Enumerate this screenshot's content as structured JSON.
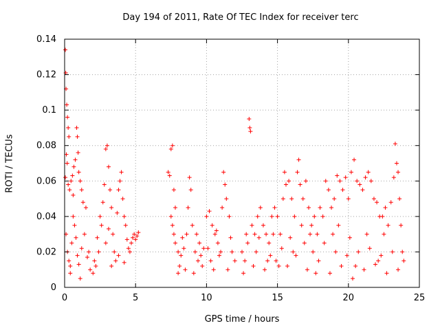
{
  "chart_data": {
    "type": "scatter",
    "title": "Day 194 of 2011, Rate Of TEC Index for receiver terc",
    "xlabel": "GPS time / hours",
    "ylabel": "ROTI / TECUs",
    "xlim": [
      0,
      25
    ],
    "ylim": [
      0,
      0.14
    ],
    "xticks": [
      "0",
      "5",
      "10",
      "15",
      "20",
      "25"
    ],
    "yticks": [
      "0",
      "0.02",
      "0.04",
      "0.06",
      "0.08",
      "0.1",
      "0.12",
      "0.14"
    ],
    "grid": true,
    "marker": "+",
    "color": "#ff0000",
    "series": [
      {
        "points": [
          [
            0.05,
            0.134
          ],
          [
            0.08,
            0.121
          ],
          [
            0.1,
            0.112
          ],
          [
            0.15,
            0.103
          ],
          [
            0.2,
            0.096
          ],
          [
            0.25,
            0.09
          ],
          [
            0.3,
            0.085
          ],
          [
            0.12,
            0.075
          ],
          [
            0.18,
            0.07
          ],
          [
            0.05,
            0.062
          ],
          [
            0.25,
            0.058
          ],
          [
            0.35,
            0.055
          ],
          [
            0.45,
            0.06
          ],
          [
            0.55,
            0.063
          ],
          [
            0.65,
            0.068
          ],
          [
            0.75,
            0.072
          ],
          [
            0.85,
            0.09
          ],
          [
            0.9,
            0.085
          ],
          [
            0.95,
            0.076
          ],
          [
            1.0,
            0.065
          ],
          [
            1.1,
            0.06
          ],
          [
            1.2,
            0.055
          ],
          [
            1.3,
            0.048
          ],
          [
            0.1,
            0.03
          ],
          [
            0.2,
            0.02
          ],
          [
            0.3,
            0.015
          ],
          [
            0.4,
            0.012
          ],
          [
            0.5,
            0.025
          ],
          [
            0.6,
            0.04
          ],
          [
            0.7,
            0.035
          ],
          [
            0.8,
            0.028
          ],
          [
            0.9,
            0.018
          ],
          [
            1.0,
            0.013
          ],
          [
            1.2,
            0.022
          ],
          [
            1.4,
            0.03
          ],
          [
            1.6,
            0.017
          ],
          [
            1.8,
            0.01
          ],
          [
            2.0,
            0.008
          ],
          [
            2.2,
            0.012
          ],
          [
            2.4,
            0.02
          ],
          [
            2.6,
            0.035
          ],
          [
            2.7,
            0.048
          ],
          [
            2.8,
            0.058
          ],
          [
            2.9,
            0.078
          ],
          [
            3.0,
            0.08
          ],
          [
            3.1,
            0.068
          ],
          [
            3.2,
            0.055
          ],
          [
            3.3,
            0.045
          ],
          [
            3.4,
            0.03
          ],
          [
            3.5,
            0.02
          ],
          [
            3.6,
            0.015
          ],
          [
            3.7,
            0.042
          ],
          [
            3.8,
            0.055
          ],
          [
            3.9,
            0.06
          ],
          [
            4.0,
            0.065
          ],
          [
            4.1,
            0.05
          ],
          [
            4.2,
            0.04
          ],
          [
            4.3,
            0.035
          ],
          [
            4.4,
            0.027
          ],
          [
            4.5,
            0.022
          ],
          [
            4.6,
            0.02
          ],
          [
            4.7,
            0.025
          ],
          [
            4.8,
            0.028
          ],
          [
            4.9,
            0.03
          ],
          [
            5.0,
            0.027
          ],
          [
            5.1,
            0.029
          ],
          [
            5.2,
            0.031
          ],
          [
            1.5,
            0.045
          ],
          [
            2.1,
            0.015
          ],
          [
            2.5,
            0.04
          ],
          [
            2.9,
            0.025
          ],
          [
            3.3,
            0.012
          ],
          [
            3.8,
            0.018
          ],
          [
            4.2,
            0.014
          ],
          [
            0.4,
            0.008
          ],
          [
            1.1,
            0.005
          ],
          [
            1.7,
            0.02
          ],
          [
            2.3,
            0.028
          ],
          [
            3.1,
            0.033
          ],
          [
            0.6,
            0.052
          ],
          [
            7.3,
            0.065
          ],
          [
            7.4,
            0.063
          ],
          [
            7.5,
            0.078
          ],
          [
            7.6,
            0.08
          ],
          [
            7.7,
            0.055
          ],
          [
            7.8,
            0.045
          ],
          [
            7.5,
            0.04
          ],
          [
            7.6,
            0.035
          ],
          [
            7.7,
            0.03
          ],
          [
            7.8,
            0.025
          ],
          [
            8.0,
            0.02
          ],
          [
            8.2,
            0.018
          ],
          [
            8.4,
            0.022
          ],
          [
            8.6,
            0.03
          ],
          [
            8.7,
            0.045
          ],
          [
            8.8,
            0.062
          ],
          [
            8.9,
            0.055
          ],
          [
            9.0,
            0.035
          ],
          [
            9.2,
            0.02
          ],
          [
            9.4,
            0.015
          ],
          [
            9.6,
            0.018
          ],
          [
            9.8,
            0.022
          ],
          [
            10.0,
            0.04
          ],
          [
            10.2,
            0.043
          ],
          [
            10.4,
            0.035
          ],
          [
            10.6,
            0.03
          ],
          [
            10.8,
            0.025
          ],
          [
            11.0,
            0.02
          ],
          [
            11.2,
            0.065
          ],
          [
            11.3,
            0.058
          ],
          [
            11.4,
            0.05
          ],
          [
            11.6,
            0.04
          ],
          [
            11.8,
            0.02
          ],
          [
            12.0,
            0.015
          ],
          [
            8.1,
            0.012
          ],
          [
            8.5,
            0.01
          ],
          [
            9.1,
            0.008
          ],
          [
            9.7,
            0.012
          ],
          [
            10.3,
            0.015
          ],
          [
            10.9,
            0.018
          ],
          [
            11.5,
            0.01
          ],
          [
            8.3,
            0.028
          ],
          [
            9.3,
            0.03
          ],
          [
            10.1,
            0.022
          ],
          [
            10.7,
            0.032
          ],
          [
            11.1,
            0.045
          ],
          [
            11.7,
            0.028
          ],
          [
            8.0,
            0.008
          ],
          [
            9.5,
            0.025
          ],
          [
            10.5,
            0.01
          ],
          [
            12.5,
            0.02
          ],
          [
            12.7,
            0.015
          ],
          [
            12.9,
            0.025
          ],
          [
            13.0,
            0.095
          ],
          [
            13.05,
            0.09
          ],
          [
            13.1,
            0.088
          ],
          [
            13.2,
            0.035
          ],
          [
            13.4,
            0.03
          ],
          [
            13.6,
            0.04
          ],
          [
            13.8,
            0.045
          ],
          [
            14.0,
            0.035
          ],
          [
            14.2,
            0.03
          ],
          [
            14.4,
            0.025
          ],
          [
            14.6,
            0.04
          ],
          [
            14.8,
            0.045
          ],
          [
            15.0,
            0.04
          ],
          [
            15.2,
            0.03
          ],
          [
            15.4,
            0.05
          ],
          [
            15.5,
            0.065
          ],
          [
            15.6,
            0.058
          ],
          [
            15.8,
            0.06
          ],
          [
            16.0,
            0.05
          ],
          [
            16.2,
            0.04
          ],
          [
            16.4,
            0.065
          ],
          [
            16.5,
            0.072
          ],
          [
            16.6,
            0.058
          ],
          [
            16.8,
            0.05
          ],
          [
            17.0,
            0.06
          ],
          [
            17.2,
            0.045
          ],
          [
            17.4,
            0.035
          ],
          [
            17.6,
            0.04
          ],
          [
            17.8,
            0.03
          ],
          [
            18.0,
            0.045
          ],
          [
            18.2,
            0.04
          ],
          [
            18.4,
            0.06
          ],
          [
            18.6,
            0.055
          ],
          [
            18.8,
            0.045
          ],
          [
            19.0,
            0.05
          ],
          [
            19.2,
            0.063
          ],
          [
            19.4,
            0.06
          ],
          [
            19.6,
            0.055
          ],
          [
            19.8,
            0.062
          ],
          [
            20.0,
            0.05
          ],
          [
            20.2,
            0.065
          ],
          [
            20.4,
            0.072
          ],
          [
            20.6,
            0.06
          ],
          [
            20.8,
            0.058
          ],
          [
            21.0,
            0.055
          ],
          [
            21.2,
            0.062
          ],
          [
            21.4,
            0.065
          ],
          [
            21.6,
            0.06
          ],
          [
            21.8,
            0.05
          ],
          [
            22.0,
            0.048
          ],
          [
            22.2,
            0.04
          ],
          [
            22.4,
            0.04
          ],
          [
            22.6,
            0.045
          ],
          [
            22.8,
            0.035
          ],
          [
            23.0,
            0.048
          ],
          [
            23.2,
            0.062
          ],
          [
            23.3,
            0.081
          ],
          [
            23.4,
            0.07
          ],
          [
            23.5,
            0.065
          ],
          [
            23.6,
            0.05
          ],
          [
            23.7,
            0.035
          ],
          [
            23.8,
            0.02
          ],
          [
            12.6,
            0.008
          ],
          [
            13.3,
            0.012
          ],
          [
            14.1,
            0.01
          ],
          [
            14.9,
            0.015
          ],
          [
            15.7,
            0.012
          ],
          [
            16.3,
            0.018
          ],
          [
            17.1,
            0.01
          ],
          [
            17.9,
            0.015
          ],
          [
            18.7,
            0.008
          ],
          [
            19.5,
            0.012
          ],
          [
            20.3,
            0.005
          ],
          [
            21.1,
            0.01
          ],
          [
            21.9,
            0.013
          ],
          [
            22.7,
            0.008
          ],
          [
            23.5,
            0.01
          ],
          [
            13.5,
            0.02
          ],
          [
            14.5,
            0.018
          ],
          [
            15.3,
            0.022
          ],
          [
            16.1,
            0.02
          ],
          [
            16.9,
            0.025
          ],
          [
            17.5,
            0.02
          ],
          [
            18.3,
            0.025
          ],
          [
            19.1,
            0.02
          ],
          [
            19.9,
            0.018
          ],
          [
            20.7,
            0.02
          ],
          [
            21.5,
            0.022
          ],
          [
            22.3,
            0.018
          ],
          [
            23.1,
            0.02
          ],
          [
            13.7,
            0.028
          ],
          [
            14.7,
            0.03
          ],
          [
            15.9,
            0.028
          ],
          [
            17.3,
            0.03
          ],
          [
            18.9,
            0.03
          ],
          [
            20.1,
            0.028
          ],
          [
            21.3,
            0.03
          ],
          [
            22.5,
            0.03
          ],
          [
            23.9,
            0.015
          ],
          [
            15.1,
            0.012
          ],
          [
            17.7,
            0.008
          ],
          [
            20.5,
            0.012
          ],
          [
            22.1,
            0.015
          ],
          [
            12.8,
            0.03
          ],
          [
            14.3,
            0.015
          ],
          [
            16.7,
            0.035
          ],
          [
            19.3,
            0.035
          ]
        ]
      }
    ]
  }
}
